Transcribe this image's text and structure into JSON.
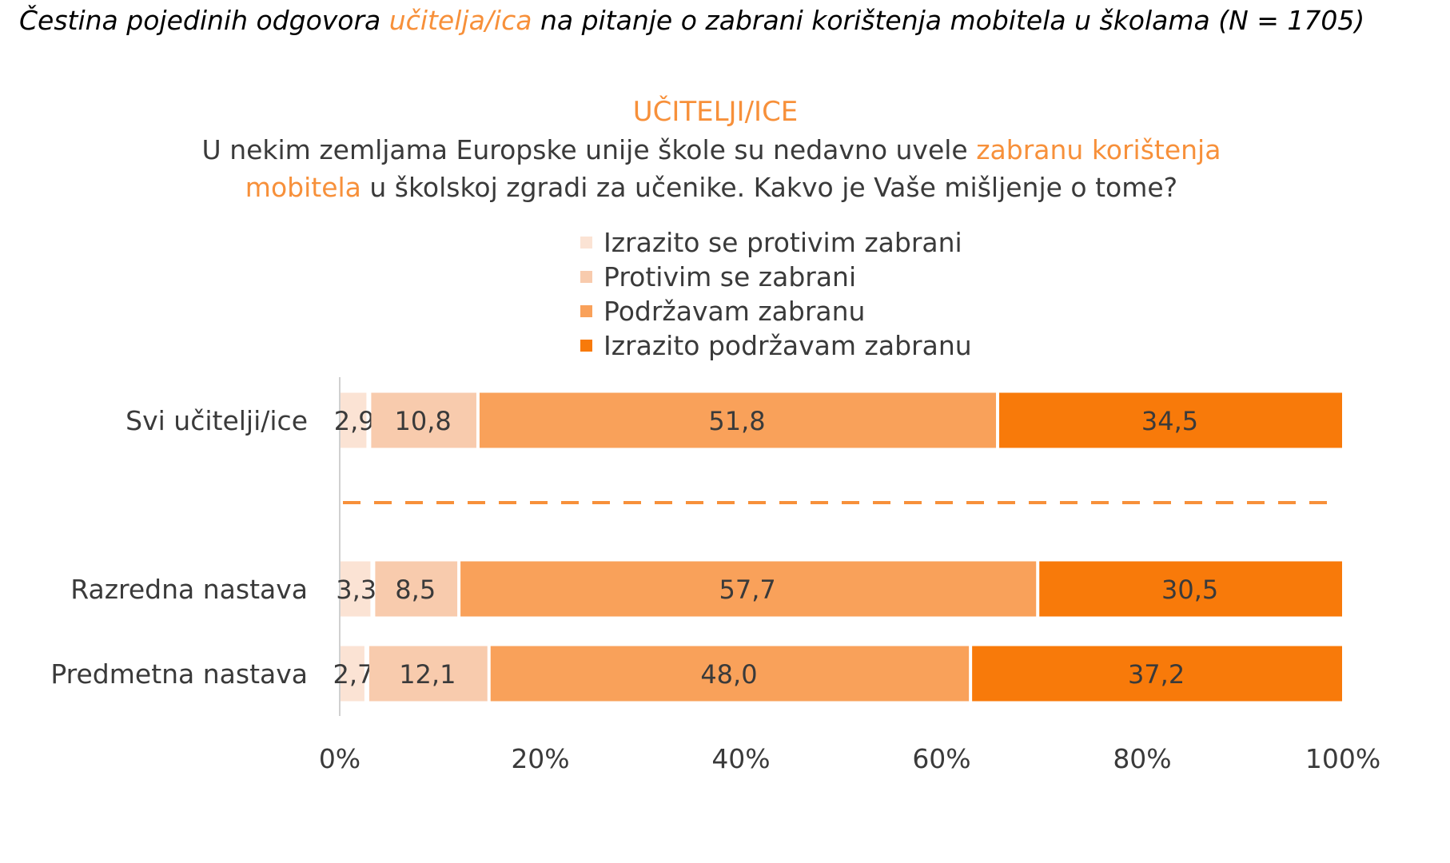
{
  "figure_title": {
    "part1": "Čestina pojedinih odgovora ",
    "highlight": "učitelja/ica",
    "part2": " na pitanje o zabrani korištenja mobitela u školama (N = 1705)"
  },
  "chart_heading": "UČITELJI/ICE",
  "question": {
    "part1": "U nekim zemljama Europske unije škole su nedavno uvele ",
    "highlight": "zabranu korištenja mobitela",
    "part2": " u školskoj zgradi za učenike. Kakvo je Vaše mišljenje o tome?"
  },
  "colors": {
    "accent": "#f7903a",
    "series": [
      "#fbe3d4",
      "#f8cbad",
      "#f9a15a",
      "#f87a0a"
    ],
    "axis": "#d0d0d0",
    "divider": "#f7903a"
  },
  "chart_data": {
    "type": "bar",
    "orientation": "horizontal",
    "stacked": true,
    "percent": true,
    "categories": [
      "Svi učitelji/ice",
      "Razredna nastava",
      "Predmetna nastava"
    ],
    "series": [
      {
        "name": "Izrazito se protivim zabrani",
        "values": [
          2.9,
          3.3,
          2.7
        ],
        "labels": [
          "2,9",
          "3,3",
          "2,7"
        ]
      },
      {
        "name": "Protivim se zabrani",
        "values": [
          10.8,
          8.5,
          12.1
        ],
        "labels": [
          "10,8",
          "8,5",
          "12,1"
        ]
      },
      {
        "name": "Podržavam zabranu",
        "values": [
          51.8,
          57.7,
          48.0
        ],
        "labels": [
          "51,8",
          "57,7",
          "48,0"
        ]
      },
      {
        "name": "Izrazito podržavam zabranu",
        "values": [
          34.5,
          30.5,
          37.2
        ],
        "labels": [
          "34,5",
          "30,5",
          "37,2"
        ]
      }
    ],
    "xlim": [
      0,
      100
    ],
    "x_ticks": [
      "0%",
      "20%",
      "40%",
      "60%",
      "80%",
      "100%"
    ],
    "legend": "top",
    "divider_after_category": 0
  }
}
